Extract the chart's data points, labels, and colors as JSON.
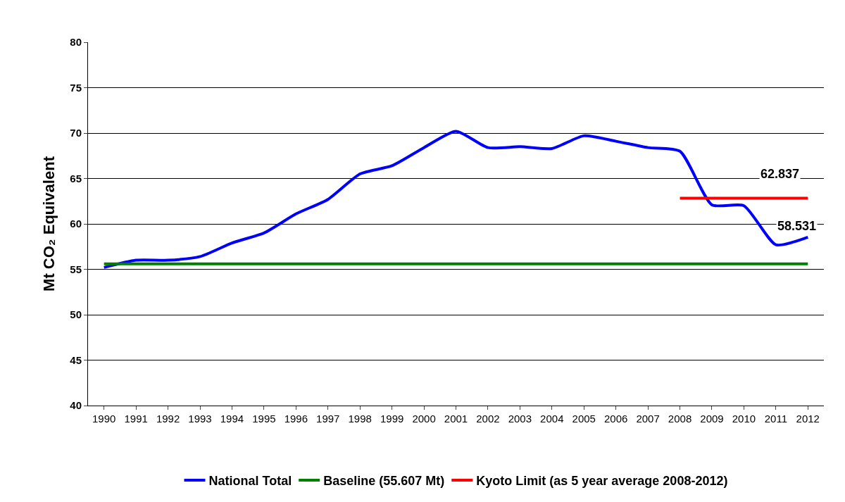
{
  "chart_data": {
    "type": "line",
    "ylabel": "Mt CO₂ Equivalent",
    "categories": [
      "1990",
      "1991",
      "1992",
      "1993",
      "1994",
      "1995",
      "1996",
      "1997",
      "1998",
      "1999",
      "2000",
      "2001",
      "2002",
      "2003",
      "2004",
      "2005",
      "2006",
      "2007",
      "2008",
      "2009",
      "2010",
      "2011",
      "2012"
    ],
    "series": [
      {
        "name": "National Total",
        "color": "#0000ff",
        "values": [
          55.2,
          56.0,
          56.0,
          56.4,
          57.9,
          59.0,
          61.1,
          62.7,
          65.5,
          66.4,
          68.4,
          70.2,
          68.4,
          68.5,
          68.3,
          69.7,
          69.1,
          68.4,
          68.0,
          62.1,
          62.0,
          57.7,
          58.531
        ],
        "value_labels": [
          null,
          null,
          null,
          null,
          null,
          null,
          null,
          null,
          null,
          null,
          null,
          null,
          null,
          null,
          null,
          null,
          null,
          null,
          null,
          null,
          null,
          null,
          "58.531"
        ]
      },
      {
        "name": "Baseline (55.607 Mt)",
        "color": "#008000",
        "values": [
          55.607,
          55.607,
          55.607,
          55.607,
          55.607,
          55.607,
          55.607,
          55.607,
          55.607,
          55.607,
          55.607,
          55.607,
          55.607,
          55.607,
          55.607,
          55.607,
          55.607,
          55.607,
          55.607,
          55.607,
          55.607,
          55.607,
          55.607
        ]
      },
      {
        "name": "Kyoto Limit (as 5 year average 2008-2012)",
        "color": "#ff0000",
        "values": [
          null,
          null,
          null,
          null,
          null,
          null,
          null,
          null,
          null,
          null,
          null,
          null,
          null,
          null,
          null,
          null,
          null,
          null,
          62.837,
          62.837,
          62.837,
          62.837,
          62.837
        ],
        "value_labels": [
          null,
          null,
          null,
          null,
          null,
          null,
          null,
          null,
          null,
          null,
          null,
          null,
          null,
          null,
          null,
          null,
          null,
          null,
          null,
          null,
          null,
          null,
          "62.837"
        ]
      }
    ],
    "ylim": [
      40,
      80
    ],
    "yticks": [
      40,
      45,
      50,
      55,
      60,
      65,
      70,
      75,
      80
    ],
    "grid": "y",
    "legend": "bottom",
    "marker": "none",
    "line_style": "solid"
  }
}
